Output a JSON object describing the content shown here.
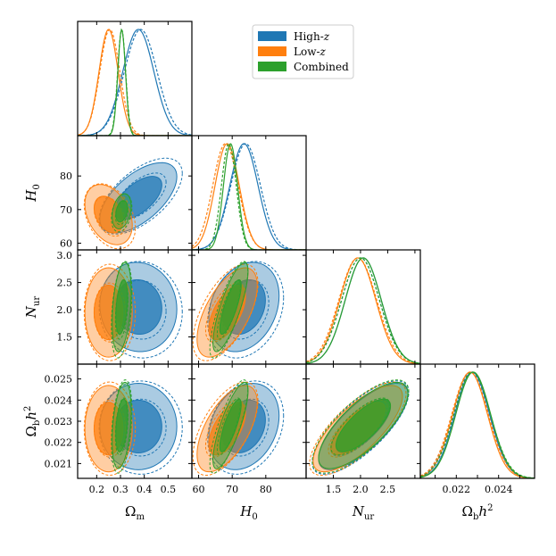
{
  "chart_data": {
    "type": "corner",
    "parameters": [
      {
        "key": "Om",
        "label": "Ωm",
        "range": [
          0.12,
          0.6
        ],
        "ticks": [
          0.2,
          0.3,
          0.4,
          0.5
        ],
        "tick_labels": [
          "0.2",
          "0.3",
          "0.4",
          "0.5"
        ]
      },
      {
        "key": "H0",
        "label": "H0",
        "range": [
          58,
          92
        ],
        "ticks": [
          60,
          70,
          80
        ],
        "tick_labels": [
          "60",
          "70",
          "80"
        ]
      },
      {
        "key": "Nur",
        "label": "Nur",
        "range": [
          1.0,
          3.1
        ],
        "ticks": [
          1.5,
          2.0,
          2.5,
          3.0
        ],
        "tick_labels": [
          "1.5",
          "2.0",
          "2.5",
          "3.0"
        ]
      },
      {
        "key": "Obh2",
        "label": "Ωbh²",
        "range": [
          0.0203,
          0.0257
        ],
        "ticks": [
          0.021,
          0.022,
          0.023,
          0.024,
          0.025
        ],
        "tick_labels": [
          "0.021",
          "0.022",
          "0.023",
          "0.024",
          "0.025"
        ]
      }
    ],
    "x_tick_labels_bottom": {
      "Om": [
        "0.2",
        "0.3",
        "0.4",
        "0.5"
      ],
      "H0": [
        "60",
        "70",
        "80"
      ],
      "Nur": [
        "1.5",
        "2.0",
        "2.5"
      ],
      "Obh2": [
        "0.022",
        "0.024"
      ]
    },
    "axis_labels": {
      "Om": {
        "main": "Ω",
        "sub": "m",
        "sup": ""
      },
      "H0": {
        "main": "H",
        "sub": "0",
        "sup": ""
      },
      "Nur": {
        "main": "N",
        "sub": "ur",
        "sup": ""
      },
      "Obh2": {
        "main": "Ω",
        "sub": "b",
        "mid": "h",
        "sup": "2"
      }
    },
    "legend": {
      "placement": "top-center",
      "entries": [
        {
          "main": "High-",
          "italic": "z"
        },
        {
          "main": "Low-",
          "italic": "z"
        },
        {
          "main": "Combined",
          "italic": ""
        }
      ]
    },
    "series": [
      {
        "name": "High-z",
        "color": "#1f77b4",
        "mean": {
          "Om": 0.375,
          "H0": 73.5,
          "Nur": 2.05,
          "Obh2": 0.02275
        },
        "mean_dashed": {
          "Om": 0.385,
          "H0": 74.0,
          "Nur": 2.0,
          "Obh2": 0.0227
        },
        "sigma": {
          "Om": 0.065,
          "H0": 4.2,
          "Nur": 0.33,
          "Obh2": 0.00082
        },
        "corr": {
          "Om-H0": 0.6,
          "Om-Nur": -0.05,
          "Om-Obh2": 0.0,
          "H0-Nur": 0.25,
          "H0-Obh2": 0.25,
          "Nur-Obh2": 0.75
        }
      },
      {
        "name": "Low-z",
        "color": "#ff7f0e",
        "mean": {
          "Om": 0.25,
          "H0": 68.5,
          "Nur": 1.95,
          "Obh2": 0.02265
        },
        "mean_dashed": {
          "Om": 0.255,
          "H0": 68.0,
          "Nur": 1.95,
          "Obh2": 0.02265
        },
        "sigma": {
          "Om": 0.04,
          "H0": 3.6,
          "Nur": 0.33,
          "Obh2": 0.00082
        },
        "corr": {
          "Om-H0": -0.35,
          "Om-Nur": 0.0,
          "Om-Obh2": 0.0,
          "H0-Nur": 0.6,
          "H0-Obh2": 0.6,
          "Nur-Obh2": 0.75
        }
      },
      {
        "name": "Combined",
        "color": "#2ca02c",
        "mean": {
          "Om": 0.305,
          "H0": 69.5,
          "Nur": 2.05,
          "Obh2": 0.0228
        },
        "mean_dashed": {
          "Om": 0.305,
          "H0": 69.0,
          "Nur": 2.0,
          "Obh2": 0.02275
        },
        "sigma": {
          "Om": 0.016,
          "H0": 2.1,
          "Nur": 0.33,
          "Obh2": 0.00082
        },
        "corr": {
          "Om-H0": 0.3,
          "Om-Nur": 0.35,
          "Om-Obh2": 0.35,
          "H0-Nur": 0.8,
          "H0-Obh2": 0.8,
          "Nur-Obh2": 0.75
        }
      }
    ],
    "contour_levels": [
      "68%",
      "95%"
    ],
    "line_styles": [
      "solid",
      "dashed"
    ]
  }
}
